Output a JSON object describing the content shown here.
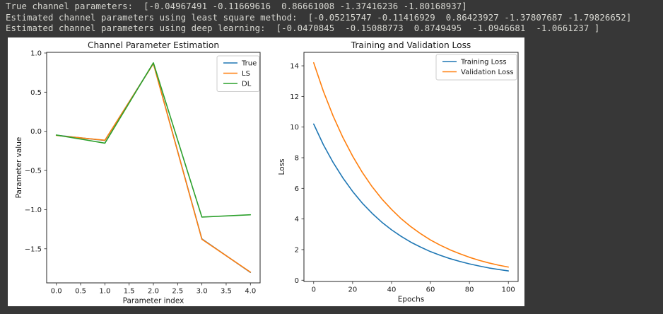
{
  "terminal": {
    "bg_color": "#373737",
    "text_color": "#d8d8d2",
    "lines": [
      "True channel parameters:  [-0.04967491 -0.11669616  0.86661008 -1.37416236 -1.80168937]",
      "Estimated channel parameters using least square method:  [-0.05215747 -0.11416929  0.86423927 -1.37807687 -1.79826652]",
      "Estimated channel parameters using deep learning:  [-0.0470845  -0.15088773  0.8749495  -1.0946681  -1.0661237 ]"
    ]
  },
  "figure": {
    "bg_color": "#ffffff"
  },
  "chart_data": [
    {
      "type": "line",
      "title": "Channel Parameter Estimation",
      "xlabel": "Parameter index",
      "ylabel": "Parameter value",
      "x": [
        0,
        1,
        2,
        3,
        4
      ],
      "series": [
        {
          "name": "True",
          "color": "#1f77b4",
          "values": [
            -0.04967491,
            -0.11669616,
            0.86661008,
            -1.37416236,
            -1.80168937
          ]
        },
        {
          "name": "LS",
          "color": "#ff7f0e",
          "values": [
            -0.05215747,
            -0.11416929,
            0.86423927,
            -1.37807687,
            -1.79826652
          ]
        },
        {
          "name": "DL",
          "color": "#2ca02c",
          "values": [
            -0.0470845,
            -0.15088773,
            0.8749495,
            -1.0946681,
            -1.0661237
          ]
        }
      ],
      "xlim": [
        -0.2,
        4.2
      ],
      "ylim": [
        -1.9355,
        1.0088
      ],
      "xticks": [
        0.0,
        0.5,
        1.0,
        1.5,
        2.0,
        2.5,
        3.0,
        3.5,
        4.0
      ],
      "xtick_labels": [
        "0.0",
        "0.5",
        "1.0",
        "1.5",
        "2.0",
        "2.5",
        "3.0",
        "3.5",
        "4.0"
      ],
      "yticks": [
        1.0,
        0.5,
        0.0,
        -0.5,
        -1.0,
        -1.5
      ],
      "ytick_labels": [
        "1.0",
        "0.5",
        "0.0",
        "−0.5",
        "−1.0",
        "−1.5"
      ],
      "legend_position": "upper right",
      "grid": false
    },
    {
      "type": "line",
      "title": "Training and Validation Loss",
      "xlabel": "Epochs",
      "ylabel": "Loss",
      "x": [
        0,
        5,
        10,
        15,
        20,
        25,
        30,
        35,
        40,
        45,
        50,
        55,
        60,
        65,
        70,
        75,
        80,
        85,
        90,
        95,
        100
      ],
      "series": [
        {
          "name": "Training Loss",
          "color": "#1f77b4",
          "values": [
            10.2,
            8.85,
            7.69,
            6.68,
            5.8,
            5.03,
            4.37,
            3.79,
            3.29,
            2.86,
            2.48,
            2.16,
            1.87,
            1.63,
            1.41,
            1.23,
            1.07,
            0.93,
            0.8,
            0.7,
            0.61
          ]
        },
        {
          "name": "Validation Loss",
          "color": "#ff7f0e",
          "values": [
            14.2,
            12.34,
            10.72,
            9.32,
            8.1,
            7.04,
            6.11,
            5.31,
            4.62,
            4.01,
            3.49,
            3.03,
            2.63,
            2.29,
            1.99,
            1.73,
            1.5,
            1.3,
            1.13,
            0.98,
            0.86
          ]
        }
      ],
      "xlim": [
        -5,
        105
      ],
      "ylim": [
        -0.08,
        14.88
      ],
      "xticks": [
        0,
        20,
        40,
        60,
        80,
        100
      ],
      "xtick_labels": [
        "0",
        "20",
        "40",
        "60",
        "80",
        "100"
      ],
      "yticks": [
        0,
        2,
        4,
        6,
        8,
        10,
        12,
        14
      ],
      "ytick_labels": [
        "0",
        "2",
        "4",
        "6",
        "8",
        "10",
        "12",
        "14"
      ],
      "legend_position": "upper right",
      "grid": false
    }
  ]
}
